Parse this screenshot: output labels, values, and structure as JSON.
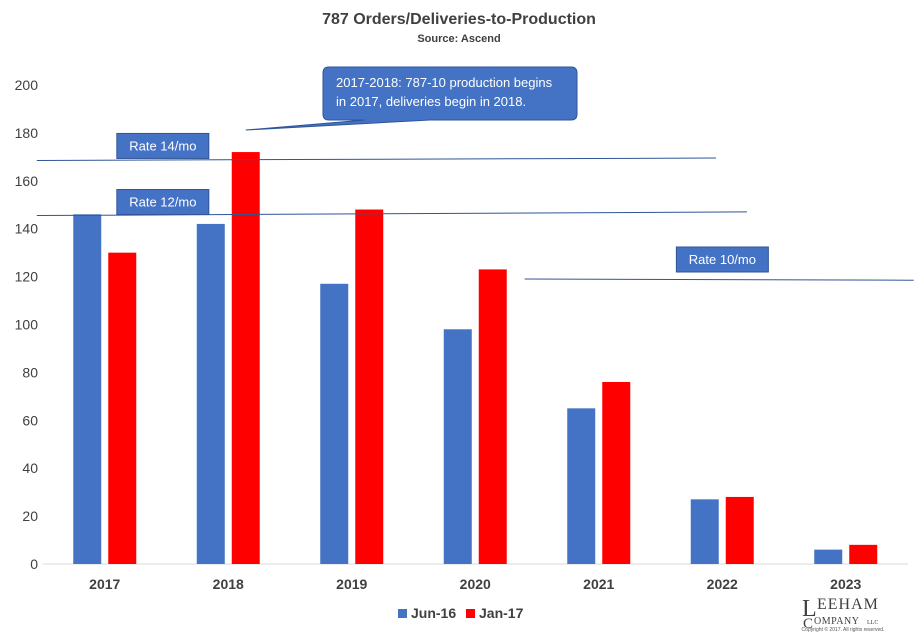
{
  "chart_data": {
    "type": "bar",
    "title": "787 Orders/Deliveries-to-Production",
    "subtitle": "Source: Ascend",
    "categories": [
      "2017",
      "2018",
      "2019",
      "2020",
      "2021",
      "2022",
      "2023"
    ],
    "series": [
      {
        "name": "Jun-16",
        "color": "#4472C4",
        "values": [
          146,
          142,
          117,
          98,
          65,
          27,
          6
        ]
      },
      {
        "name": "Jan-17",
        "color": "#FF0000",
        "values": [
          130,
          172,
          148,
          123,
          76,
          28,
          8
        ]
      }
    ],
    "ylim": [
      0,
      200
    ],
    "yticks": [
      0,
      20,
      40,
      60,
      80,
      100,
      120,
      140,
      160,
      180,
      200
    ],
    "grid": false,
    "legend": "bottom",
    "reference_lines": [
      {
        "label": "Rate 14/mo",
        "from": [
          -0.55,
          168.5
        ],
        "to": [
          4.95,
          169.5
        ]
      },
      {
        "label": "Rate 12/mo",
        "from": [
          -0.55,
          145.5
        ],
        "to": [
          5.2,
          147
        ]
      },
      {
        "label": "Rate 10/mo",
        "from": [
          3.4,
          119
        ],
        "to": [
          6.55,
          118.5
        ]
      }
    ],
    "callout": {
      "lines": [
        "2017-2018: 787-10 production begins",
        "in 2017, deliveries begin in 2018."
      ],
      "points_to": {
        "category": "2018",
        "series": "Jan-17",
        "value": 172
      }
    }
  },
  "logo": {
    "name_top": "EEHAM",
    "name_bottom": "OMPANY",
    "initial": "L",
    "initial2": "C",
    "suffix": "LLC",
    "copyright": "Copyright © 2017. All rights reserved."
  },
  "colors": {
    "accent": "#4472C4",
    "callout_fill": "#4472C4",
    "axis": "#d9d9d9",
    "text": "#404040"
  }
}
